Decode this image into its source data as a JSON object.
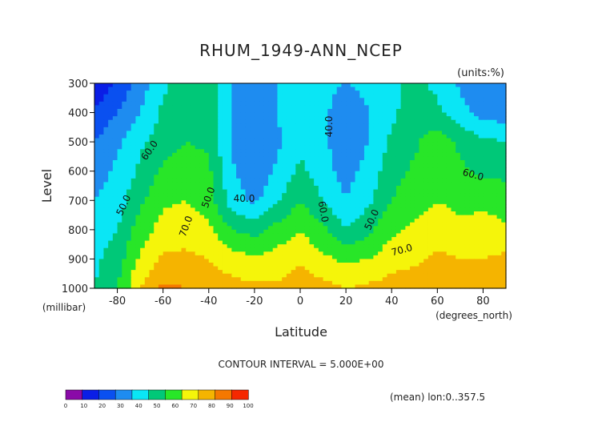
{
  "chart_data": {
    "type": "heatmap",
    "title": "RHUM_1949-ANN_NCEP",
    "units_label": "(units:%)",
    "ylabel": "Level",
    "ylabel_units": "(millibar)",
    "xlabel": "Latitude",
    "xlabel_units": "(degrees_north)",
    "x_ticks": [
      "-80",
      "-60",
      "-40",
      "-20",
      "0",
      "20",
      "40",
      "60",
      "80"
    ],
    "x_tick_values": [
      -80,
      -60,
      -40,
      -20,
      0,
      20,
      40,
      60,
      80
    ],
    "y_ticks": [
      "300",
      "400",
      "500",
      "600",
      "700",
      "800",
      "900",
      "1000"
    ],
    "y_tick_values": [
      300,
      400,
      500,
      600,
      700,
      800,
      900,
      1000
    ],
    "xlim": [
      -90,
      90
    ],
    "ylim": [
      1000,
      300
    ],
    "contour_interval_text": "CONTOUR INTERVAL = 5.000E+00",
    "footer_note": "(mean) lon:0..357.5",
    "colorbar": {
      "ticks": [
        "0",
        "10",
        "20",
        "30",
        "40",
        "50",
        "60",
        "70",
        "80",
        "90",
        "100"
      ],
      "colors": [
        "#8a0aa8",
        "#0a1ee6",
        "#0a50f0",
        "#1e8cf0",
        "#0ae6f5",
        "#00c878",
        "#28e628",
        "#f5f50a",
        "#f5b400",
        "#f57800",
        "#f52800"
      ]
    },
    "contour_labels": [
      "60.0",
      "50.0",
      "50.0",
      "40.0",
      "70.0",
      "40.0",
      "60.0",
      "50.0",
      "60.0",
      "70.0"
    ],
    "latitudes": [
      -90,
      -80,
      -70,
      -60,
      -50,
      -40,
      -30,
      -20,
      -10,
      0,
      10,
      20,
      30,
      40,
      50,
      60,
      70,
      80,
      90
    ],
    "levels": [
      300,
      400,
      500,
      600,
      700,
      800,
      900,
      1000
    ],
    "rhum": [
      [
        10,
        22,
        35,
        48,
        56,
        58,
        40,
        38,
        40,
        45,
        42,
        40,
        42,
        48,
        52,
        48,
        38,
        32,
        30
      ],
      [
        22,
        30,
        40,
        52,
        58,
        60,
        40,
        30,
        40,
        48,
        42,
        35,
        40,
        48,
        55,
        52,
        44,
        36,
        34
      ],
      [
        30,
        38,
        48,
        55,
        60,
        58,
        38,
        30,
        38,
        48,
        42,
        33,
        40,
        52,
        58,
        66,
        58,
        52,
        50
      ],
      [
        35,
        42,
        52,
        62,
        66,
        62,
        42,
        32,
        42,
        52,
        44,
        36,
        44,
        56,
        62,
        68,
        62,
        58,
        58
      ],
      [
        40,
        45,
        58,
        68,
        70,
        65,
        45,
        38,
        48,
        60,
        50,
        40,
        48,
        60,
        66,
        70,
        66,
        66,
        64
      ],
      [
        45,
        50,
        65,
        74,
        76,
        72,
        60,
        56,
        64,
        70,
        62,
        50,
        58,
        68,
        72,
        76,
        74,
        76,
        72
      ],
      [
        48,
        55,
        72,
        82,
        82,
        80,
        74,
        72,
        74,
        78,
        72,
        68,
        70,
        76,
        78,
        82,
        80,
        80,
        82
      ],
      [
        50,
        60,
        80,
        92,
        90,
        88,
        84,
        82,
        82,
        86,
        84,
        80,
        82,
        84,
        86,
        88,
        86,
        86,
        88
      ]
    ]
  }
}
